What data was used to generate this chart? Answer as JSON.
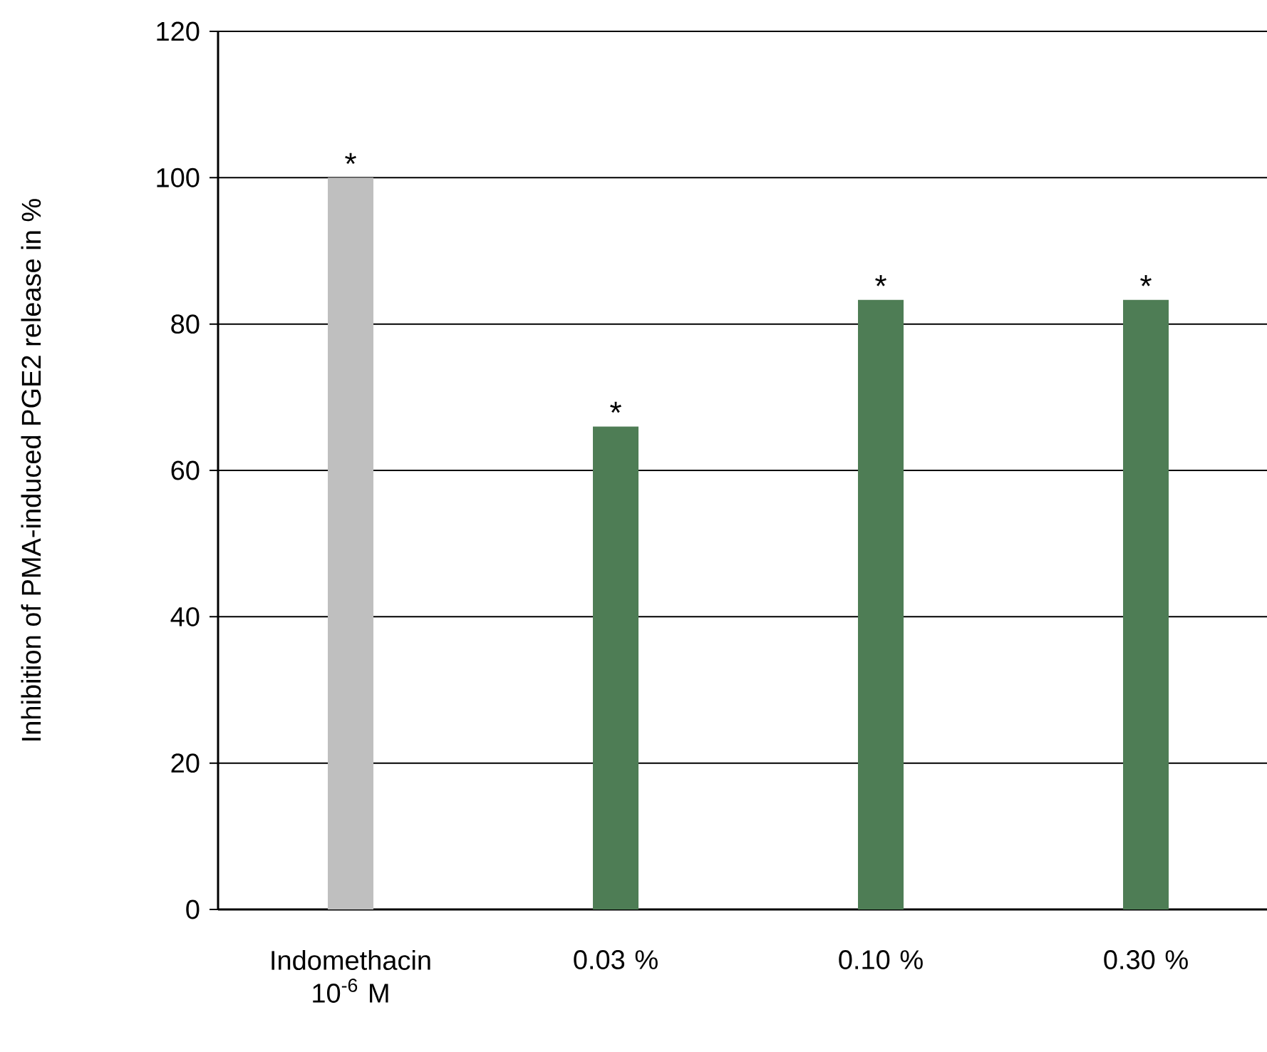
{
  "chart_data": {
    "type": "bar",
    "ylabel": "Inhibition of PMA-induced PGE2 release in %",
    "categories": [
      "Indomethacin 10$^{-6}$ M",
      "0.03 %",
      "0.10 %",
      "0.30 %"
    ],
    "values": [
      100,
      66,
      83.3,
      83.3
    ],
    "colors": [
      "#bfbfbf",
      "#4e7d55",
      "#4e7d55",
      "#4e7d55"
    ],
    "ylim": [
      0,
      120
    ],
    "yticks": [
      0,
      20,
      40,
      60,
      80,
      100,
      120
    ],
    "grid": "y",
    "annotations": [
      {
        "text": "*",
        "x": "Indomethacin 10$^{-6}$ M",
        "y": 100
      },
      {
        "text": "*",
        "x": "0.03 %",
        "y": 66
      },
      {
        "text": "*",
        "x": "0.10 %",
        "y": 83.3
      },
      {
        "text": "*",
        "x": "0.30 %",
        "y": 83.3
      }
    ]
  }
}
